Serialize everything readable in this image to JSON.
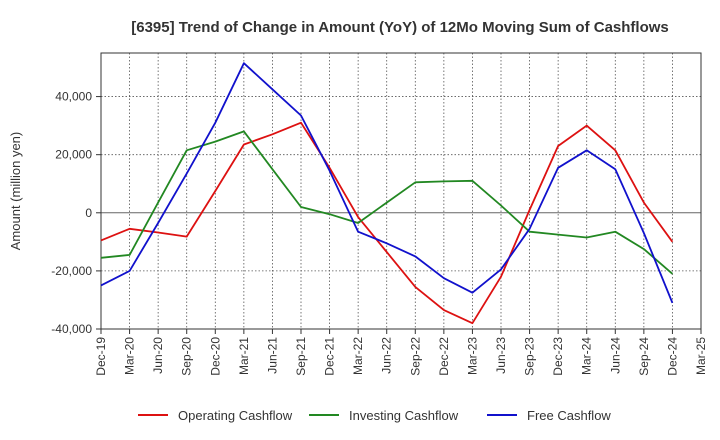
{
  "chart_data": {
    "type": "line",
    "title": "[6395]  Trend of Change in Amount (YoY) of 12Mo Moving Sum of Cashflows",
    "xlabel": "",
    "ylabel": "Amount (million yen)",
    "ylim": [
      -40000,
      55000
    ],
    "yticks": [
      -40000,
      -20000,
      0,
      20000,
      40000
    ],
    "ytick_labels": [
      "-40,000",
      "-20,000",
      "0",
      "20,000",
      "40,000"
    ],
    "categories": [
      "Dec-19",
      "Mar-20",
      "Jun-20",
      "Sep-20",
      "Dec-20",
      "Mar-21",
      "Jun-21",
      "Sep-21",
      "Dec-21",
      "Mar-22",
      "Jun-22",
      "Sep-22",
      "Dec-22",
      "Mar-23",
      "Jun-23",
      "Sep-23",
      "Dec-23",
      "Mar-24",
      "Jun-24",
      "Sep-24",
      "Dec-24",
      "Mar-25"
    ],
    "grid": true,
    "legend_position": "bottom",
    "series": [
      {
        "name": "Operating Cashflow",
        "color": "#dd1111",
        "values": [
          -9500,
          -5500,
          -6800,
          -8200,
          7500,
          23500,
          27000,
          31000,
          15500,
          -1500,
          -13500,
          -25500,
          -33500,
          -38000,
          -22000,
          1000,
          23000,
          30000,
          21500,
          3500,
          -10000,
          null
        ]
      },
      {
        "name": "Investing Cashflow",
        "color": "#228822",
        "values": [
          -15500,
          -14500,
          3500,
          21500,
          24500,
          28000,
          15000,
          2000,
          -500,
          -3500,
          3500,
          10500,
          10800,
          11000,
          2500,
          -6500,
          -7500,
          -8500,
          -6500,
          -12500,
          -21000,
          null
        ]
      },
      {
        "name": "Free Cashflow",
        "color": "#1111cc",
        "values": [
          -25000,
          -20000,
          -3500,
          13500,
          31000,
          51500,
          42500,
          33500,
          14500,
          -6500,
          -10500,
          -15000,
          -22500,
          -27500,
          -19500,
          -5500,
          15500,
          21500,
          15000,
          -7000,
          -31000,
          null
        ]
      }
    ]
  }
}
